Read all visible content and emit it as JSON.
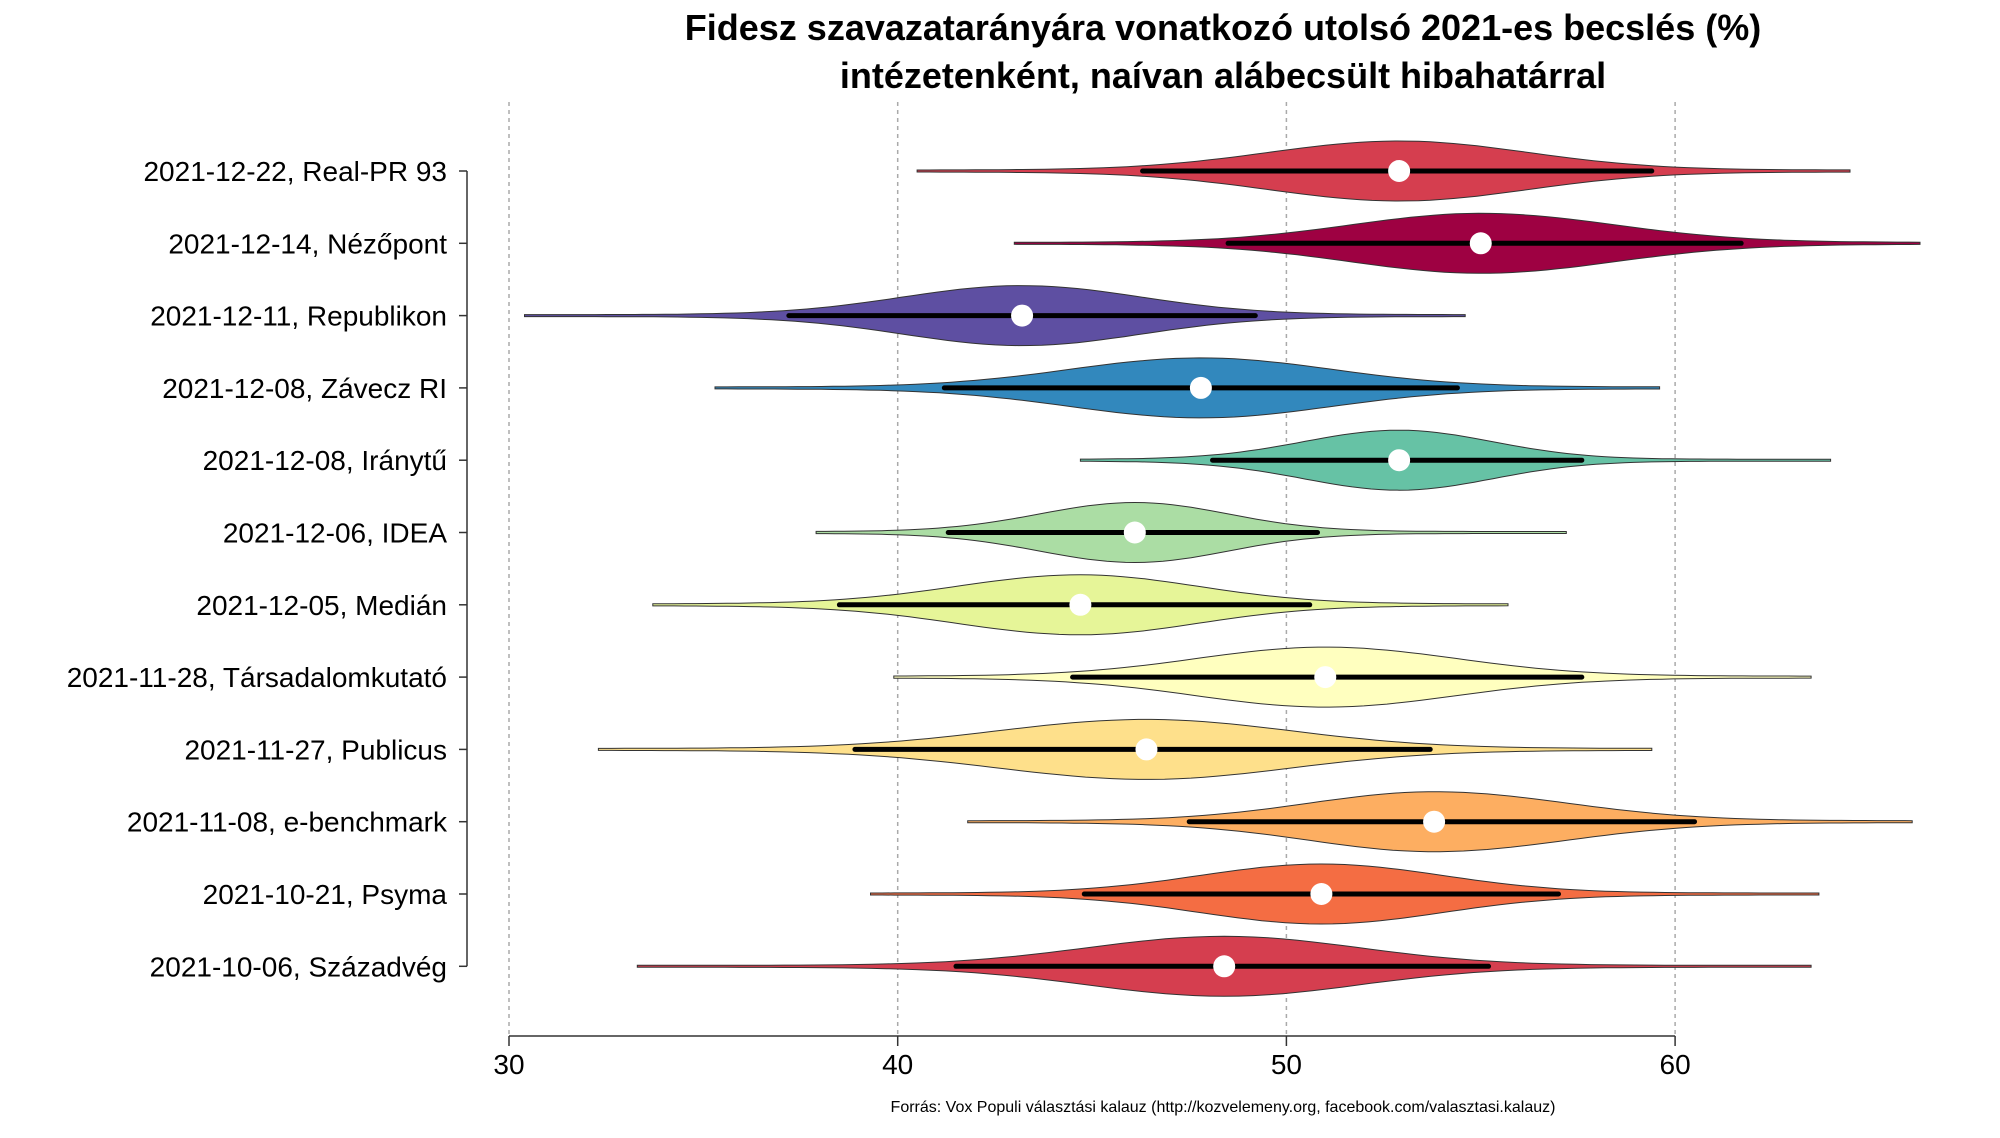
{
  "chart_data": {
    "type": "violin",
    "title": [
      "Fidesz szavazatarányára vonatkozó utolsó 2021-es becslés (%)",
      "intézetenként, naívan alábecsült hibahatárral"
    ],
    "xlabel": "",
    "ylabel": "",
    "xlim": [
      30,
      66.5
    ],
    "xticks": [
      30,
      40,
      50,
      60
    ],
    "grid": "vertical dashed",
    "caption": "Forrás: Vox Populi választási kalauz (http://kozvelemeny.org, facebook.com/valasztasi.kalauz)",
    "series": [
      {
        "name": "2021-12-22, Real-PR 93",
        "color": "#D53E4F",
        "min": 40.5,
        "ci_low": 46.3,
        "median": 52.9,
        "ci_high": 59.4,
        "max": 64.5
      },
      {
        "name": "2021-12-14, Nézőpont",
        "color": "#9E0142",
        "min": 43.0,
        "ci_low": 48.5,
        "median": 55.0,
        "ci_high": 61.7,
        "max": 66.3
      },
      {
        "name": "2021-12-11, Republikon",
        "color": "#5E4FA2",
        "min": 30.4,
        "ci_low": 37.2,
        "median": 43.2,
        "ci_high": 49.2,
        "max": 54.6
      },
      {
        "name": "2021-12-08, Závecz RI",
        "color": "#3288BD",
        "min": 35.3,
        "ci_low": 41.2,
        "median": 47.8,
        "ci_high": 54.4,
        "max": 59.6
      },
      {
        "name": "2021-12-08, Iránytű",
        "color": "#66C2A5",
        "min": 44.7,
        "ci_low": 48.1,
        "median": 52.9,
        "ci_high": 57.6,
        "max": 64.0
      },
      {
        "name": "2021-12-06, IDEA",
        "color": "#ABDDA4",
        "min": 37.9,
        "ci_low": 41.3,
        "median": 46.1,
        "ci_high": 50.8,
        "max": 57.2
      },
      {
        "name": "2021-12-05, Medián",
        "color": "#E6F598",
        "min": 33.7,
        "ci_low": 38.5,
        "median": 44.7,
        "ci_high": 50.6,
        "max": 55.7
      },
      {
        "name": "2021-11-28, Társadalomkutató",
        "color": "#FFFFBF",
        "min": 39.9,
        "ci_low": 44.5,
        "median": 51.0,
        "ci_high": 57.6,
        "max": 63.5
      },
      {
        "name": "2021-11-27, Publicus",
        "color": "#FEE08B",
        "min": 32.3,
        "ci_low": 38.9,
        "median": 46.4,
        "ci_high": 53.7,
        "max": 59.4
      },
      {
        "name": "2021-11-08, e-benchmark",
        "color": "#FDAE61",
        "min": 41.8,
        "ci_low": 47.5,
        "median": 53.8,
        "ci_high": 60.5,
        "max": 66.1
      },
      {
        "name": "2021-10-21, Psyma",
        "color": "#F46D43",
        "min": 39.3,
        "ci_low": 44.8,
        "median": 50.9,
        "ci_high": 57.0,
        "max": 63.7
      },
      {
        "name": "2021-10-06, Századvég",
        "color": "#D53E4F",
        "min": 33.3,
        "ci_low": 41.5,
        "median": 48.4,
        "ci_high": 55.2,
        "max": 63.5
      }
    ]
  }
}
